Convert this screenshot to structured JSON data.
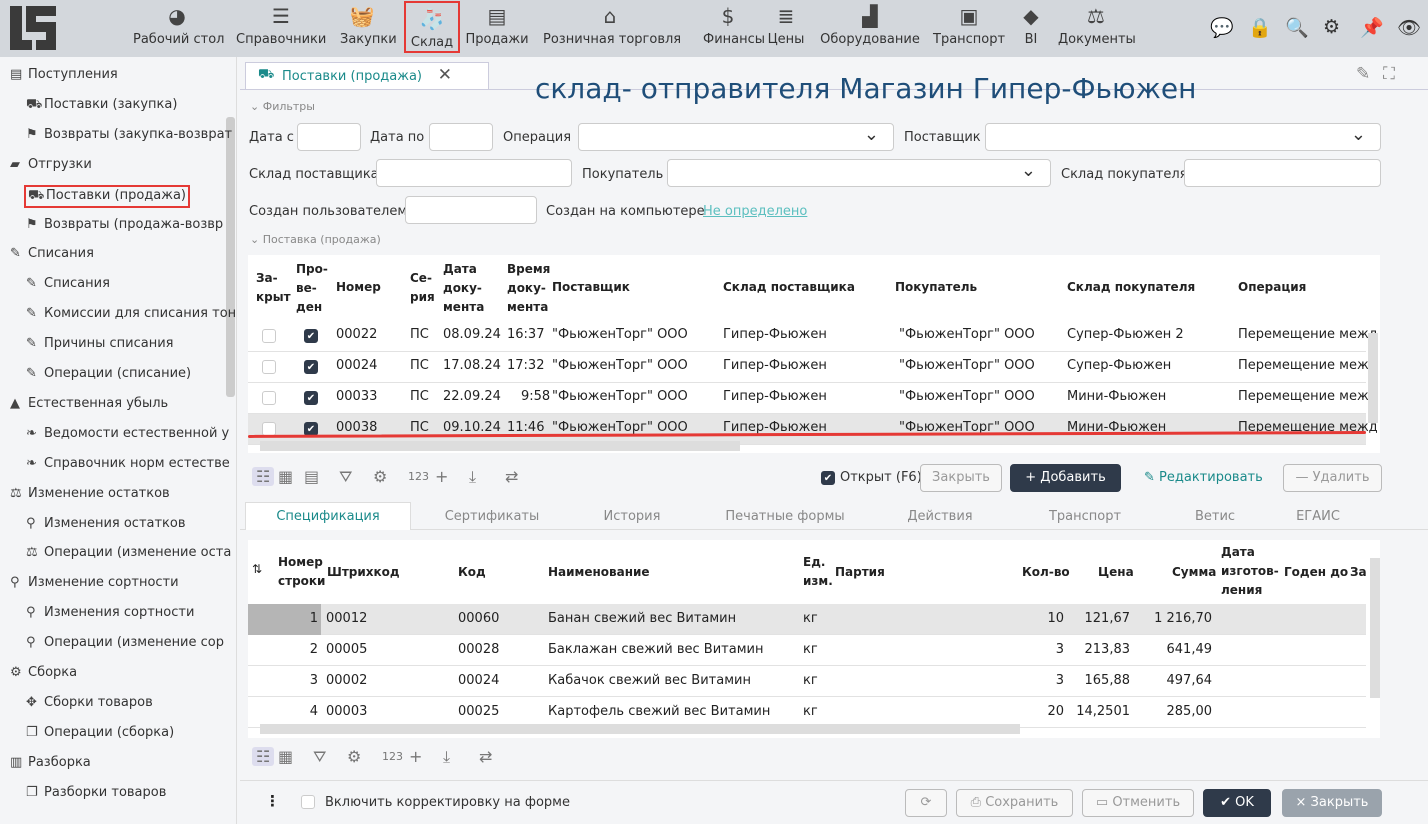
{
  "nav": [
    {
      "label": "Рабочий стол",
      "icon": "dashboard-icon",
      "glyph": "◕"
    },
    {
      "label": "Справочники",
      "icon": "checklist-icon",
      "glyph": "☰"
    },
    {
      "label": "Закупки",
      "icon": "basket-icon",
      "glyph": "🧺"
    },
    {
      "label": "Склад",
      "icon": "socks-icon",
      "glyph": "🧦"
    },
    {
      "label": "Продажи",
      "icon": "document-icon",
      "glyph": "▤"
    },
    {
      "label": "Розничная торговля",
      "icon": "store-icon",
      "glyph": "⌂"
    },
    {
      "label": "Финансы",
      "icon": "dollar-icon",
      "glyph": "$"
    },
    {
      "label": "Цены",
      "icon": "list-icon",
      "glyph": "≣"
    },
    {
      "label": "Оборудование",
      "icon": "factory-icon",
      "glyph": "▟"
    },
    {
      "label": "Транспорт",
      "icon": "bus-icon",
      "glyph": "▣"
    },
    {
      "label": "BI",
      "icon": "diamond-icon",
      "glyph": "◆"
    },
    {
      "label": "Документы",
      "icon": "stamp-icon",
      "glyph": "⚖"
    }
  ],
  "sidebar": [
    {
      "label": "Поступления",
      "level": 0,
      "glyph": "▤"
    },
    {
      "label": "Поставки (закупка)",
      "level": 1,
      "glyph": "⛟"
    },
    {
      "label": "Возвраты (закупка-возврат",
      "level": 1,
      "glyph": "⚑"
    },
    {
      "label": "Отгрузки",
      "level": 0,
      "glyph": "▰"
    },
    {
      "label": "Поставки (продажа)",
      "level": 1,
      "glyph": "⛟",
      "selected": true
    },
    {
      "label": "Возвраты (продажа-возвр",
      "level": 1,
      "glyph": "⚑"
    },
    {
      "label": "Списания",
      "level": 0,
      "glyph": "✎"
    },
    {
      "label": "Списания",
      "level": 1,
      "glyph": "✎"
    },
    {
      "label": "Комиссии для списания тон",
      "level": 1,
      "glyph": "✎"
    },
    {
      "label": "Причины списания",
      "level": 1,
      "glyph": "✎"
    },
    {
      "label": "Операции (списание)",
      "level": 1,
      "glyph": "✎"
    },
    {
      "label": "Естественная убыль",
      "level": 0,
      "glyph": "▲"
    },
    {
      "label": "Ведомости естественной у",
      "level": 1,
      "glyph": "❧"
    },
    {
      "label": "Справочник норм естестве",
      "level": 1,
      "glyph": "❧"
    },
    {
      "label": "Изменение остатков",
      "level": 0,
      "glyph": "⚖"
    },
    {
      "label": "Изменения остатков",
      "level": 1,
      "glyph": "⚲"
    },
    {
      "label": "Операции (изменение оста",
      "level": 1,
      "glyph": "⚖"
    },
    {
      "label": "Изменение сортности",
      "level": 0,
      "glyph": "⚲"
    },
    {
      "label": "Изменения сортности",
      "level": 1,
      "glyph": "⚲"
    },
    {
      "label": "Операции (изменение сор",
      "level": 1,
      "glyph": "⚲"
    },
    {
      "label": "Сборка",
      "level": 0,
      "glyph": "⚙"
    },
    {
      "label": "Сборки товаров",
      "level": 1,
      "glyph": "✥"
    },
    {
      "label": "Операции (сборка)",
      "level": 1,
      "glyph": "❐"
    },
    {
      "label": "Разборка",
      "level": 0,
      "glyph": "▥"
    },
    {
      "label": "Разборки товаров",
      "level": 1,
      "glyph": "❐"
    }
  ],
  "tab": {
    "label": "Поставки (продажа)"
  },
  "annotation": "склад- отправителя Магазин Гипер-Фьюжен",
  "filters": {
    "section": "Фильтры",
    "date_from": "Дата с",
    "date_to": "Дата по",
    "operation": "Операция",
    "supplier": "Поставщик",
    "supplier_wh": "Склад поставщика",
    "buyer": "Покупатель",
    "buyer_wh": "Склад покупателя",
    "created_by": "Создан пользователем",
    "created_on": "Создан на компьютере",
    "created_on_value": "Не определено"
  },
  "docs": {
    "section": "Поставка (продажа)",
    "headers": [
      "За-\nкрыт",
      "Про-\nве-\nден",
      "Номер",
      "Се-\nрия",
      "Дата\nдоку-\nмента",
      "Время\nдоку-\nмента",
      "Поставщик",
      "Склад поставщика",
      "Покупатель",
      "Склад покупателя",
      "Операция"
    ],
    "rows": [
      {
        "closed": false,
        "posted": true,
        "num": "00022",
        "series": "ПС",
        "date": "08.09.24",
        "time": "16:37",
        "supplier": "\"ФьюженТорг\" ООО",
        "supplier_wh": "Гипер-Фьюжен",
        "buyer": "\"ФьюженТорг\" ООО",
        "buyer_wh": "Супер-Фьюжен 2",
        "op": "Перемещение межд"
      },
      {
        "closed": false,
        "posted": true,
        "num": "00024",
        "series": "ПС",
        "date": "17.08.24",
        "time": "17:32",
        "supplier": "\"ФьюженТорг\" ООО",
        "supplier_wh": "Гипер-Фьюжен",
        "buyer": "\"ФьюженТорг\" ООО",
        "buyer_wh": "Супер-Фьюжен",
        "op": "Перемещение межд"
      },
      {
        "closed": false,
        "posted": true,
        "num": "00033",
        "series": "ПС",
        "date": "22.09.24",
        "time": "9:58",
        "supplier": "\"ФьюженТорг\" ООО",
        "supplier_wh": "Гипер-Фьюжен",
        "buyer": "\"ФьюженТорг\" ООО",
        "buyer_wh": "Мини-Фьюжен",
        "op": "Перемещение межд"
      },
      {
        "closed": false,
        "posted": true,
        "num": "00038",
        "series": "ПС",
        "date": "09.10.24",
        "time": "11:46",
        "supplier": "\"ФьюженТорг\" ООО",
        "supplier_wh": "Гипер-Фьюжен",
        "buyer": "\"ФьюженТорг\" ООО",
        "buyer_wh": "Мини-Фьюжен",
        "op": "Перемещение межд",
        "selected": true
      }
    ]
  },
  "toolbar": {
    "counter": "123",
    "open_label": "Открыт (F6)",
    "open_checked": true,
    "close": "Закрыть",
    "add": "+ Добавить",
    "edit": "Редактировать",
    "delete": "— Удалить"
  },
  "subtabs": [
    "Спецификация",
    "Сертификаты",
    "История",
    "Печатные формы",
    "Действия",
    "Транспорт",
    "Ветис",
    "ЕГАИС"
  ],
  "spec": {
    "headers": [
      "Номер\nстроки",
      "Штрихкод",
      "Код",
      "Наименование",
      "Ед.\nизм.",
      "Партия",
      "Кол-во",
      "Цена",
      "Сумма",
      "Дата\nизготов-\nления",
      "Годен до",
      "За"
    ],
    "rows": [
      {
        "n": "1",
        "barcode": "00012",
        "code": "00060",
        "name": "Банан свежий вес Витамин",
        "unit": "кг",
        "qty": "10",
        "price": "121,67",
        "sum": "1 216,70",
        "selected": true
      },
      {
        "n": "2",
        "barcode": "00005",
        "code": "00028",
        "name": "Баклажан свежий вес Витамин",
        "unit": "кг",
        "qty": "3",
        "price": "213,83",
        "sum": "641,49"
      },
      {
        "n": "3",
        "barcode": "00002",
        "code": "00024",
        "name": "Кабачок свежий вес Витамин",
        "unit": "кг",
        "qty": "3",
        "price": "165,88",
        "sum": "497,64"
      },
      {
        "n": "4",
        "barcode": "00003",
        "code": "00025",
        "name": "Картофель свежий вес Витамин",
        "unit": "кг",
        "qty": "20",
        "price": "14,2501",
        "sum": "285,00"
      }
    ]
  },
  "footer": {
    "correction": "Включить корректировку на форме",
    "save": "Сохранить",
    "cancel": "Отменить",
    "ok": "✔ OK",
    "close": "× Закрыть"
  },
  "colors": {
    "accent": "#1a8a8a",
    "dark": "#2f3a4a",
    "highlight": "#e53935"
  }
}
